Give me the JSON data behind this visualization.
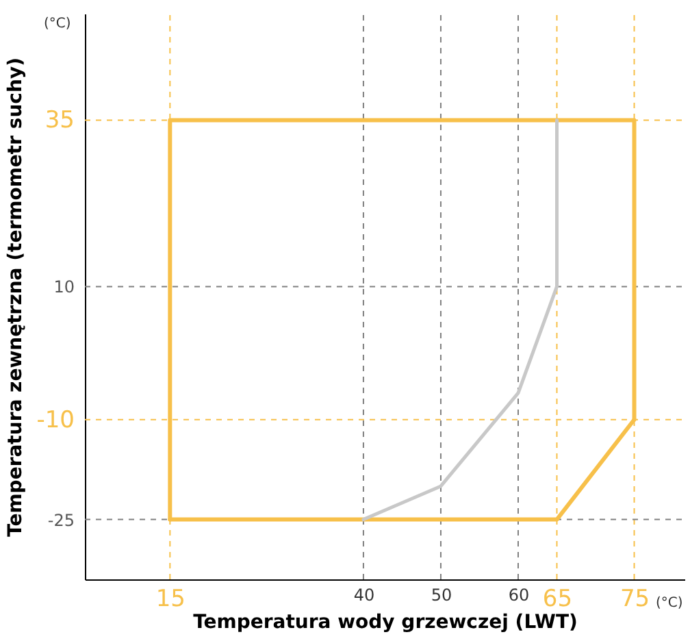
{
  "chart_data": {
    "type": "line",
    "xlabel": "Temperatura wody grzewczej (LWT)",
    "ylabel": "Temperatura zewnętrzna (termometr suchy)",
    "annotations": [
      "(°C)",
      "(°C)"
    ],
    "xlim": [
      4,
      81.5
    ],
    "ylim": [
      -34,
      51
    ],
    "xticks": [
      15,
      40,
      50,
      60,
      65,
      75
    ],
    "yticks": [
      -25,
      -10,
      10,
      35
    ],
    "grid": false,
    "marker": "none",
    "line_style": "solid",
    "series": [
      {
        "color": "#f7c04a",
        "x": [
          15,
          15,
          75,
          75
        ],
        "values": [
          -25,
          35,
          35,
          -10
        ]
      },
      {
        "color": "#f7c04a",
        "x": [
          15,
          65,
          75
        ],
        "values": [
          -25,
          -25,
          -10
        ]
      },
      {
        "color": "#c8c8c8",
        "x": [
          40,
          50,
          60,
          65,
          65
        ],
        "values": [
          -25,
          -20,
          -6,
          10,
          35
        ]
      }
    ],
    "ref_lines": [
      {
        "axis": "x",
        "value": 15,
        "color": "#f7c04a",
        "line_style": "dashed"
      },
      {
        "axis": "x",
        "value": 75,
        "color": "#f7c04a",
        "line_style": "dashed"
      },
      {
        "axis": "x",
        "value": 65,
        "color": "#f7c04a",
        "line_style": "dashed"
      },
      {
        "axis": "x",
        "value": 40,
        "color": "#808080",
        "line_style": "dashed"
      },
      {
        "axis": "x",
        "value": 50,
        "color": "#808080",
        "line_style": "dashed"
      },
      {
        "axis": "x",
        "value": 60,
        "color": "#808080",
        "line_style": "dashed"
      },
      {
        "axis": "y",
        "value": 35,
        "color": "#f7c04a",
        "line_style": "dashed"
      },
      {
        "axis": "y",
        "value": -10,
        "color": "#f7c04a",
        "line_style": "dashed"
      },
      {
        "axis": "y",
        "value": 10,
        "color": "#808080",
        "line_style": "dashed"
      },
      {
        "axis": "y",
        "value": -25,
        "color": "#808080",
        "line_style": "dashed"
      }
    ]
  }
}
